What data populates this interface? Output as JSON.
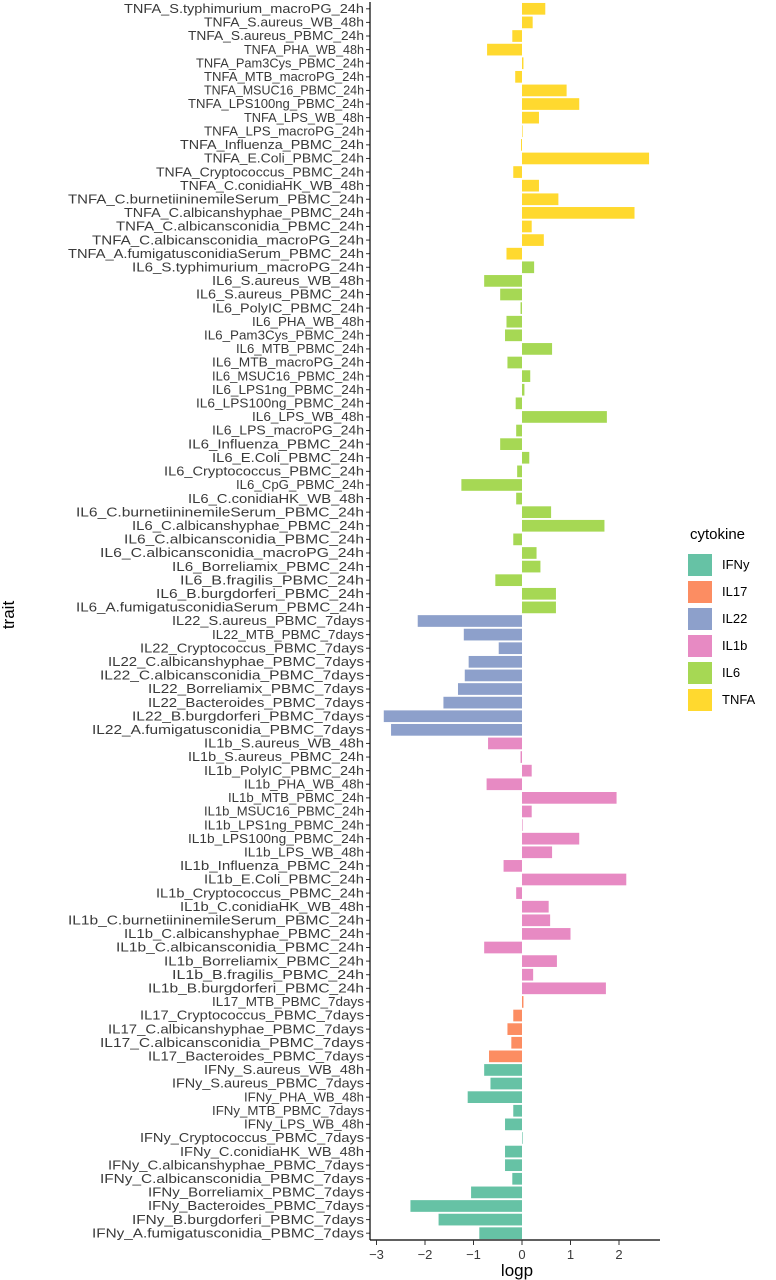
{
  "chart_data": {
    "type": "bar",
    "orientation": "horizontal",
    "xlabel": "logp",
    "ylabel": "trait",
    "xlim": [
      -3.1,
      2.9
    ],
    "x_ticks": [
      -3,
      -2,
      -1,
      0,
      1,
      2
    ],
    "grid": false,
    "legend": {
      "title": "cytokine",
      "placement": "right",
      "entries": [
        "IFNy",
        "IL17",
        "IL22",
        "IL1b",
        "IL6",
        "TNFA"
      ]
    },
    "colors": {
      "IFNy": "#66c2a5",
      "IL17": "#fc8d62",
      "IL22": "#8da0cb",
      "IL1b": "#e78ac3",
      "IL6": "#a6d854",
      "TNFA": "#ffd92f"
    },
    "bars": [
      {
        "trait": "TNFA_S.typhimurium_macroPG_24h",
        "cytokine": "TNFA",
        "logp": 0.48
      },
      {
        "trait": "TNFA_S.aureus_WB_48h",
        "cytokine": "TNFA",
        "logp": 0.22
      },
      {
        "trait": "TNFA_S.aureus_PBMC_24h",
        "cytokine": "TNFA",
        "logp": -0.2
      },
      {
        "trait": "TNFA_PHA_WB_48h",
        "cytokine": "TNFA",
        "logp": -0.72
      },
      {
        "trait": "TNFA_Pam3Cys_PBMC_24h",
        "cytokine": "TNFA",
        "logp": 0.03
      },
      {
        "trait": "TNFA_MTB_macroPG_24h",
        "cytokine": "TNFA",
        "logp": -0.14
      },
      {
        "trait": "TNFA_MSUC16_PBMC_24h",
        "cytokine": "TNFA",
        "logp": 0.92
      },
      {
        "trait": "TNFA_LPS100ng_PBMC_24h",
        "cytokine": "TNFA",
        "logp": 1.18
      },
      {
        "trait": "TNFA_LPS_WB_48h",
        "cytokine": "TNFA",
        "logp": 0.35
      },
      {
        "trait": "TNFA_LPS_macroPG_24h",
        "cytokine": "TNFA",
        "logp": 0.0
      },
      {
        "trait": "TNFA_Influenza_PBMC_24h",
        "cytokine": "TNFA",
        "logp": -0.02
      },
      {
        "trait": "TNFA_E.Coli_PBMC_24h",
        "cytokine": "TNFA",
        "logp": 2.62
      },
      {
        "trait": "TNFA_Cryptococcus_PBMC_24h",
        "cytokine": "TNFA",
        "logp": -0.18
      },
      {
        "trait": "TNFA_C.conidiaHK_WB_48h",
        "cytokine": "TNFA",
        "logp": 0.35
      },
      {
        "trait": "TNFA_C.burnetiininemileSerum_PBMC_24h",
        "cytokine": "TNFA",
        "logp": 0.75
      },
      {
        "trait": "TNFA_C.albicanshyphae_PBMC_24h",
        "cytokine": "TNFA",
        "logp": 2.32
      },
      {
        "trait": "TNFA_C.albicansconidia_PBMC_24h",
        "cytokine": "TNFA",
        "logp": 0.2
      },
      {
        "trait": "TNFA_C.albicansconidia_macroPG_24h",
        "cytokine": "TNFA",
        "logp": 0.45
      },
      {
        "trait": "TNFA_A.fumigatusconidiaSerum_PBMC_24h",
        "cytokine": "TNFA",
        "logp": -0.32
      },
      {
        "trait": "IL6_S.typhimurium_macroPG_24h",
        "cytokine": "IL6",
        "logp": 0.25
      },
      {
        "trait": "IL6_S.aureus_WB_48h",
        "cytokine": "IL6",
        "logp": -0.78
      },
      {
        "trait": "IL6_S.aureus_PBMC_24h",
        "cytokine": "IL6",
        "logp": -0.45
      },
      {
        "trait": "IL6_PolyIC_PBMC_24h",
        "cytokine": "IL6",
        "logp": -0.03
      },
      {
        "trait": "IL6_PHA_WB_48h",
        "cytokine": "IL6",
        "logp": -0.32
      },
      {
        "trait": "IL6_Pam3Cys_PBMC_24h",
        "cytokine": "IL6",
        "logp": -0.35
      },
      {
        "trait": "IL6_MTB_PBMC_24h",
        "cytokine": "IL6",
        "logp": 0.62
      },
      {
        "trait": "IL6_MTB_macroPG_24h",
        "cytokine": "IL6",
        "logp": -0.3
      },
      {
        "trait": "IL6_MSUC16_PBMC_24h",
        "cytokine": "IL6",
        "logp": 0.17
      },
      {
        "trait": "IL6_LPS1ng_PBMC_24h",
        "cytokine": "IL6",
        "logp": 0.05
      },
      {
        "trait": "IL6_LPS100ng_PBMC_24h",
        "cytokine": "IL6",
        "logp": -0.13
      },
      {
        "trait": "IL6_LPS_WB_48h",
        "cytokine": "IL6",
        "logp": 1.75
      },
      {
        "trait": "IL6_LPS_macroPG_24h",
        "cytokine": "IL6",
        "logp": -0.12
      },
      {
        "trait": "IL6_Influenza_PBMC_24h",
        "cytokine": "IL6",
        "logp": -0.45
      },
      {
        "trait": "IL6_E.Coli_PBMC_24h",
        "cytokine": "IL6",
        "logp": 0.15
      },
      {
        "trait": "IL6_Cryptococcus_PBMC_24h",
        "cytokine": "IL6",
        "logp": -0.1
      },
      {
        "trait": "IL6_CpG_PBMC_24h",
        "cytokine": "IL6",
        "logp": -1.25
      },
      {
        "trait": "IL6_C.conidiaHK_WB_48h",
        "cytokine": "IL6",
        "logp": -0.12
      },
      {
        "trait": "IL6_C.burnetiininemileSerum_PBMC_24h",
        "cytokine": "IL6",
        "logp": 0.6
      },
      {
        "trait": "IL6_C.albicanshyphae_PBMC_24h",
        "cytokine": "IL6",
        "logp": 1.7
      },
      {
        "trait": "IL6_C.albicansconidia_PBMC_24h",
        "cytokine": "IL6",
        "logp": -0.18
      },
      {
        "trait": "IL6_C.albicansconidia_macroPG_24h",
        "cytokine": "IL6",
        "logp": 0.3
      },
      {
        "trait": "IL6_Borreliamix_PBMC_24h",
        "cytokine": "IL6",
        "logp": 0.38
      },
      {
        "trait": "IL6_B.fragilis_PBMC_24h",
        "cytokine": "IL6",
        "logp": -0.55
      },
      {
        "trait": "IL6_B.burgdorferi_PBMC_24h",
        "cytokine": "IL6",
        "logp": 0.7
      },
      {
        "trait": "IL6_A.fumigatusconidiaSerum_PBMC_24h",
        "cytokine": "IL6",
        "logp": 0.7
      },
      {
        "trait": "IL22_S.aureus_PBMC_7days",
        "cytokine": "IL22",
        "logp": -2.15
      },
      {
        "trait": "IL22_MTB_PBMC_7days",
        "cytokine": "IL22",
        "logp": -1.2
      },
      {
        "trait": "IL22_Cryptococcus_PBMC_7days",
        "cytokine": "IL22",
        "logp": -0.48
      },
      {
        "trait": "IL22_C.albicanshyphae_PBMC_7days",
        "cytokine": "IL22",
        "logp": -1.1
      },
      {
        "trait": "IL22_C.albicansconidia_PBMC_7days",
        "cytokine": "IL22",
        "logp": -1.18
      },
      {
        "trait": "IL22_Borreliamix_PBMC_7days",
        "cytokine": "IL22",
        "logp": -1.32
      },
      {
        "trait": "IL22_Bacteroides_PBMC_7days",
        "cytokine": "IL22",
        "logp": -1.62
      },
      {
        "trait": "IL22_B.burgdorferi_PBMC_7days",
        "cytokine": "IL22",
        "logp": -2.85
      },
      {
        "trait": "IL22_A.fumigatusconidia_PBMC_7days",
        "cytokine": "IL22",
        "logp": -2.7
      },
      {
        "trait": "IL1b_S.aureus_WB_48h",
        "cytokine": "IL1b",
        "logp": -0.7
      },
      {
        "trait": "IL1b_S.aureus_PBMC_24h",
        "cytokine": "IL1b",
        "logp": -0.03
      },
      {
        "trait": "IL1b_PolyIC_PBMC_24h",
        "cytokine": "IL1b",
        "logp": 0.2
      },
      {
        "trait": "IL1b_PHA_WB_48h",
        "cytokine": "IL1b",
        "logp": -0.73
      },
      {
        "trait": "IL1b_MTB_PBMC_24h",
        "cytokine": "IL1b",
        "logp": 1.95
      },
      {
        "trait": "IL1b_MSUC16_PBMC_24h",
        "cytokine": "IL1b",
        "logp": 0.2
      },
      {
        "trait": "IL1b_LPS1ng_PBMC_24h",
        "cytokine": "IL1b",
        "logp": 0.0
      },
      {
        "trait": "IL1b_LPS100ng_PBMC_24h",
        "cytokine": "IL1b",
        "logp": 1.18
      },
      {
        "trait": "IL1b_LPS_WB_48h",
        "cytokine": "IL1b",
        "logp": 0.62
      },
      {
        "trait": "IL1b_Influenza_PBMC_24h",
        "cytokine": "IL1b",
        "logp": -0.38
      },
      {
        "trait": "IL1b_E.Coli_PBMC_24h",
        "cytokine": "IL1b",
        "logp": 2.15
      },
      {
        "trait": "IL1b_Cryptococcus_PBMC_24h",
        "cytokine": "IL1b",
        "logp": -0.12
      },
      {
        "trait": "IL1b_C.conidiaHK_WB_48h",
        "cytokine": "IL1b",
        "logp": 0.55
      },
      {
        "trait": "IL1b_C.burnetiininemileSerum_PBMC_24h",
        "cytokine": "IL1b",
        "logp": 0.58
      },
      {
        "trait": "IL1b_C.albicanshyphae_PBMC_24h",
        "cytokine": "IL1b",
        "logp": 1.0
      },
      {
        "trait": "IL1b_C.albicansconidia_PBMC_24h",
        "cytokine": "IL1b",
        "logp": -0.78
      },
      {
        "trait": "IL1b_Borreliamix_PBMC_24h",
        "cytokine": "IL1b",
        "logp": 0.72
      },
      {
        "trait": "IL1b_B.fragilis_PBMC_24h",
        "cytokine": "IL1b",
        "logp": 0.23
      },
      {
        "trait": "IL1b_B.burgdorferi_PBMC_24h",
        "cytokine": "IL1b",
        "logp": 1.73
      },
      {
        "trait": "IL17_MTB_PBMC_7days",
        "cytokine": "IL17",
        "logp": 0.03
      },
      {
        "trait": "IL17_Cryptococcus_PBMC_7days",
        "cytokine": "IL17",
        "logp": -0.18
      },
      {
        "trait": "IL17_C.albicanshyphae_PBMC_7days",
        "cytokine": "IL17",
        "logp": -0.3
      },
      {
        "trait": "IL17_C.albicansconidia_PBMC_7days",
        "cytokine": "IL17",
        "logp": -0.22
      },
      {
        "trait": "IL17_Bacteroides_PBMC_7days",
        "cytokine": "IL17",
        "logp": -0.68
      },
      {
        "trait": "IFNy_S.aureus_WB_48h",
        "cytokine": "IFNy",
        "logp": -0.78
      },
      {
        "trait": "IFNy_S.aureus_PBMC_7days",
        "cytokine": "IFNy",
        "logp": -0.65
      },
      {
        "trait": "IFNy_PHA_WB_48h",
        "cytokine": "IFNy",
        "logp": -1.12
      },
      {
        "trait": "IFNy_MTB_PBMC_7days",
        "cytokine": "IFNy",
        "logp": -0.18
      },
      {
        "trait": "IFNy_LPS_WB_48h",
        "cytokine": "IFNy",
        "logp": -0.35
      },
      {
        "trait": "IFNy_Cryptococcus_PBMC_7days",
        "cytokine": "IFNy",
        "logp": 0.0
      },
      {
        "trait": "IFNy_C.conidiaHK_WB_48h",
        "cytokine": "IFNy",
        "logp": -0.35
      },
      {
        "trait": "IFNy_C.albicanshyphae_PBMC_7days",
        "cytokine": "IFNy",
        "logp": -0.35
      },
      {
        "trait": "IFNy_C.albicansconidia_PBMC_7days",
        "cytokine": "IFNy",
        "logp": -0.2
      },
      {
        "trait": "IFNy_Borreliamix_PBMC_7days",
        "cytokine": "IFNy",
        "logp": -1.05
      },
      {
        "trait": "IFNy_Bacteroides_PBMC_7days",
        "cytokine": "IFNy",
        "logp": -2.3
      },
      {
        "trait": "IFNy_B.burgdorferi_PBMC_7days",
        "cytokine": "IFNy",
        "logp": -1.72
      },
      {
        "trait": "IFNy_A.fumigatusconidia_PBMC_7days",
        "cytokine": "IFNy",
        "logp": -0.88
      }
    ]
  }
}
